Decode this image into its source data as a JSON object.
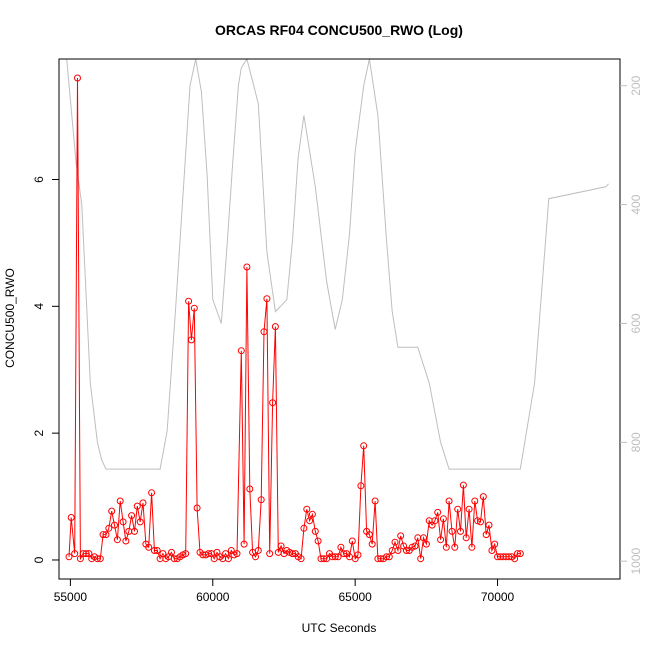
{
  "chart_data": {
    "type": "line",
    "title": "ORCAS RF04 CONCU500_RWO (Log)",
    "xlabel": "UTC Seconds",
    "ylabel": "CONCU500_RWO",
    "xlim": [
      54600,
      74300
    ],
    "ylim": [
      -0.3,
      7.9
    ],
    "x_ticks": [
      55000,
      60000,
      65000,
      70000
    ],
    "y_ticks": [
      0,
      2,
      4,
      6
    ],
    "y2lim": [
      1030,
      155
    ],
    "y2_ticks": [
      200,
      400,
      600,
      800,
      1000
    ],
    "colors": {
      "series": "#ff0000",
      "secondary": "#bebebe",
      "axis": "#000000"
    },
    "series": [
      {
        "color": "#ff0000",
        "points": [
          [
            54950,
            0.05
          ],
          [
            55030,
            0.67
          ],
          [
            55150,
            0.1
          ],
          [
            55250,
            7.6
          ],
          [
            55350,
            0.02
          ],
          [
            55450,
            0.1
          ],
          [
            55550,
            0.1
          ],
          [
            55650,
            0.1
          ],
          [
            55750,
            0.02
          ],
          [
            55850,
            0.05
          ],
          [
            55950,
            0.02
          ],
          [
            56050,
            0.02
          ],
          [
            56150,
            0.4
          ],
          [
            56250,
            0.4
          ],
          [
            56350,
            0.5
          ],
          [
            56450,
            0.77
          ],
          [
            56550,
            0.55
          ],
          [
            56650,
            0.32
          ],
          [
            56750,
            0.93
          ],
          [
            56850,
            0.6
          ],
          [
            56950,
            0.3
          ],
          [
            57050,
            0.45
          ],
          [
            57150,
            0.7
          ],
          [
            57250,
            0.45
          ],
          [
            57350,
            0.85
          ],
          [
            57450,
            0.6
          ],
          [
            57550,
            0.9
          ],
          [
            57650,
            0.25
          ],
          [
            57750,
            0.2
          ],
          [
            57850,
            1.06
          ],
          [
            57950,
            0.15
          ],
          [
            58050,
            0.15
          ],
          [
            58150,
            0.02
          ],
          [
            58250,
            0.1
          ],
          [
            58350,
            0.02
          ],
          [
            58450,
            0.05
          ],
          [
            58550,
            0.12
          ],
          [
            58650,
            0.02
          ],
          [
            58750,
            0.02
          ],
          [
            58850,
            0.05
          ],
          [
            58950,
            0.08
          ],
          [
            59050,
            0.1
          ],
          [
            59150,
            4.08
          ],
          [
            59250,
            3.47
          ],
          [
            59350,
            3.97
          ],
          [
            59450,
            0.82
          ],
          [
            59550,
            0.12
          ],
          [
            59650,
            0.08
          ],
          [
            59750,
            0.08
          ],
          [
            59850,
            0.1
          ],
          [
            59950,
            0.1
          ],
          [
            60050,
            0.02
          ],
          [
            60150,
            0.12
          ],
          [
            60250,
            0.05
          ],
          [
            60350,
            0.02
          ],
          [
            60450,
            0.1
          ],
          [
            60550,
            0.02
          ],
          [
            60650,
            0.15
          ],
          [
            60750,
            0.08
          ],
          [
            60850,
            0.1
          ],
          [
            61000,
            3.3
          ],
          [
            61100,
            0.25
          ],
          [
            61200,
            4.62
          ],
          [
            61300,
            1.12
          ],
          [
            61400,
            0.12
          ],
          [
            61500,
            0.05
          ],
          [
            61600,
            0.15
          ],
          [
            61700,
            0.95
          ],
          [
            61800,
            3.6
          ],
          [
            61900,
            4.12
          ],
          [
            62000,
            0.1
          ],
          [
            62100,
            2.48
          ],
          [
            62200,
            3.68
          ],
          [
            62300,
            0.12
          ],
          [
            62400,
            0.22
          ],
          [
            62500,
            0.1
          ],
          [
            62600,
            0.15
          ],
          [
            62700,
            0.12
          ],
          [
            62800,
            0.1
          ],
          [
            62900,
            0.1
          ],
          [
            63000,
            0.05
          ],
          [
            63100,
            0.02
          ],
          [
            63200,
            0.5
          ],
          [
            63300,
            0.8
          ],
          [
            63400,
            0.62
          ],
          [
            63500,
            0.72
          ],
          [
            63600,
            0.45
          ],
          [
            63700,
            0.3
          ],
          [
            63800,
            0.02
          ],
          [
            63900,
            0.02
          ],
          [
            64000,
            0.02
          ],
          [
            64100,
            0.1
          ],
          [
            64200,
            0.05
          ],
          [
            64300,
            0.05
          ],
          [
            64400,
            0.05
          ],
          [
            64500,
            0.2
          ],
          [
            64600,
            0.1
          ],
          [
            64700,
            0.1
          ],
          [
            64800,
            0.05
          ],
          [
            64900,
            0.3
          ],
          [
            65000,
            0.02
          ],
          [
            65100,
            0.08
          ],
          [
            65200,
            1.17
          ],
          [
            65300,
            1.8
          ],
          [
            65400,
            0.45
          ],
          [
            65500,
            0.4
          ],
          [
            65600,
            0.25
          ],
          [
            65700,
            0.93
          ],
          [
            65800,
            0.02
          ],
          [
            65900,
            0.02
          ],
          [
            66000,
            0.02
          ],
          [
            66100,
            0.05
          ],
          [
            66200,
            0.05
          ],
          [
            66300,
            0.15
          ],
          [
            66400,
            0.28
          ],
          [
            66500,
            0.15
          ],
          [
            66600,
            0.38
          ],
          [
            66700,
            0.22
          ],
          [
            66800,
            0.15
          ],
          [
            66900,
            0.15
          ],
          [
            67000,
            0.2
          ],
          [
            67100,
            0.22
          ],
          [
            67200,
            0.35
          ],
          [
            67300,
            0.02
          ],
          [
            67400,
            0.35
          ],
          [
            67500,
            0.25
          ],
          [
            67600,
            0.62
          ],
          [
            67700,
            0.55
          ],
          [
            67800,
            0.62
          ],
          [
            67900,
            0.75
          ],
          [
            68000,
            0.32
          ],
          [
            68100,
            0.65
          ],
          [
            68200,
            0.2
          ],
          [
            68300,
            0.93
          ],
          [
            68400,
            0.45
          ],
          [
            68500,
            0.2
          ],
          [
            68600,
            0.8
          ],
          [
            68700,
            0.45
          ],
          [
            68800,
            1.18
          ],
          [
            68900,
            0.35
          ],
          [
            69000,
            0.8
          ],
          [
            69100,
            0.2
          ],
          [
            69200,
            0.93
          ],
          [
            69300,
            0.62
          ],
          [
            69400,
            0.6
          ],
          [
            69500,
            1.0
          ],
          [
            69600,
            0.4
          ],
          [
            69700,
            0.55
          ],
          [
            69800,
            0.15
          ],
          [
            69900,
            0.25
          ],
          [
            70000,
            0.05
          ],
          [
            70100,
            0.05
          ],
          [
            70200,
            0.05
          ],
          [
            70300,
            0.05
          ],
          [
            70400,
            0.05
          ],
          [
            70500,
            0.05
          ],
          [
            70600,
            0.02
          ],
          [
            70700,
            0.1
          ],
          [
            70800,
            0.1
          ]
        ]
      },
      {
        "color": "#bebebe",
        "axis": "right",
        "line_only": true,
        "points": [
          [
            54870,
            155
          ],
          [
            55200,
            330
          ],
          [
            55400,
            400
          ],
          [
            55700,
            700
          ],
          [
            55950,
            800
          ],
          [
            56100,
            830
          ],
          [
            56250,
            845
          ],
          [
            58150,
            845
          ],
          [
            58400,
            780
          ],
          [
            58700,
            570
          ],
          [
            59000,
            350
          ],
          [
            59200,
            200
          ],
          [
            59400,
            155
          ],
          [
            59600,
            210
          ],
          [
            59800,
            350
          ],
          [
            60000,
            560
          ],
          [
            60300,
            600
          ],
          [
            60500,
            470
          ],
          [
            60700,
            330
          ],
          [
            60900,
            200
          ],
          [
            61000,
            170
          ],
          [
            61200,
            155
          ],
          [
            61600,
            230
          ],
          [
            61900,
            480
          ],
          [
            62200,
            580
          ],
          [
            62600,
            560
          ],
          [
            62800,
            460
          ],
          [
            63000,
            320
          ],
          [
            63200,
            250
          ],
          [
            63600,
            370
          ],
          [
            64000,
            530
          ],
          [
            64300,
            610
          ],
          [
            64550,
            560
          ],
          [
            64800,
            450
          ],
          [
            65000,
            310
          ],
          [
            65300,
            200
          ],
          [
            65500,
            155
          ],
          [
            65800,
            250
          ],
          [
            66100,
            460
          ],
          [
            66300,
            580
          ],
          [
            66500,
            640
          ],
          [
            67200,
            640
          ],
          [
            67600,
            700
          ],
          [
            68000,
            800
          ],
          [
            68300,
            845
          ],
          [
            70800,
            845
          ],
          [
            71300,
            700
          ],
          [
            71800,
            390
          ],
          [
            73800,
            370
          ],
          [
            73900,
            365
          ]
        ]
      }
    ]
  }
}
